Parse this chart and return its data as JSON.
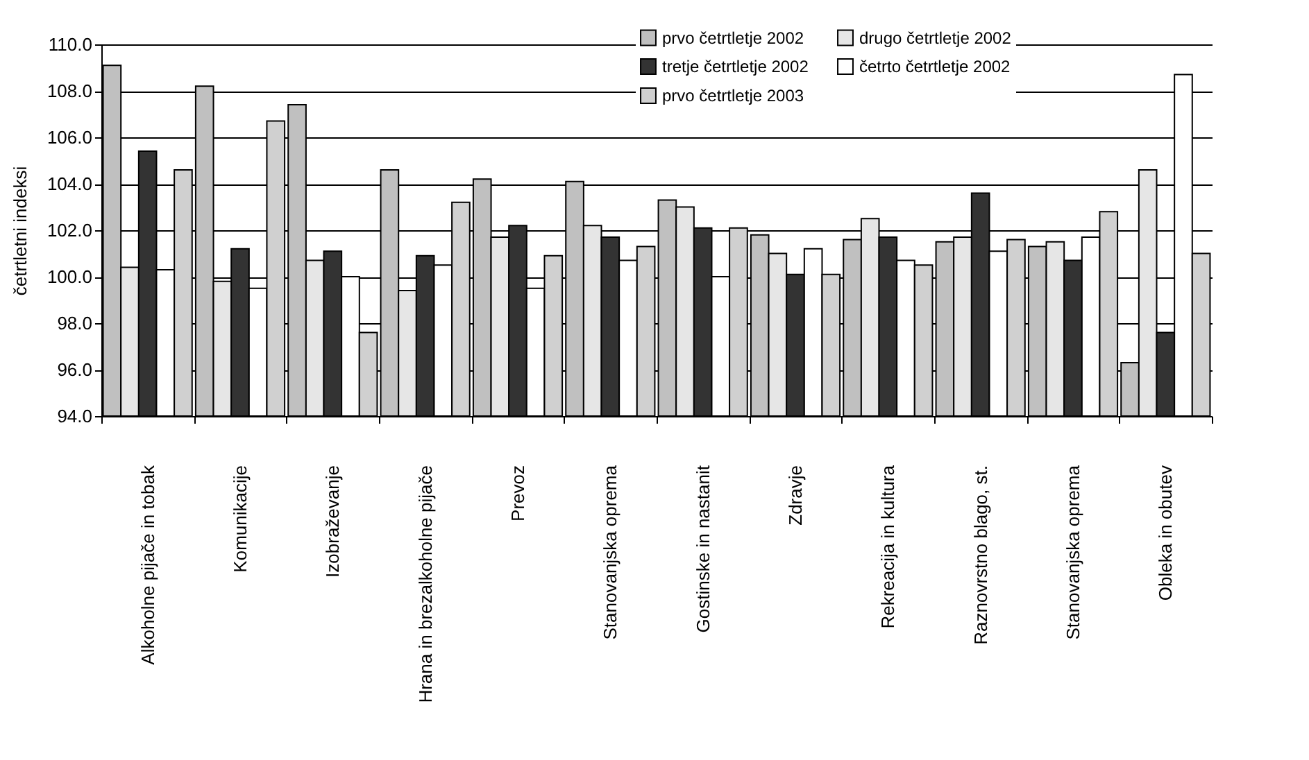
{
  "chart_data": {
    "type": "bar",
    "ylabel": "četrtletni indeksi",
    "categories": [
      "Alkoholne pijače in tobak",
      "Komunikacije",
      "Izobraževanje",
      "Hrana in brezalkoholne pijače",
      "Prevoz",
      "Stanovanjska oprema",
      "Gostinske in nastanit",
      "Zdravje",
      "Rekreacija in kultura",
      "Raznovrstno blago, st.",
      "Stanovanjska oprema",
      "Obleka in obutev"
    ],
    "series": [
      {
        "name": "prvo četrtletje 2002",
        "color": "#c0c0c0",
        "values": [
          109.1,
          108.2,
          107.4,
          104.6,
          104.2,
          104.1,
          103.3,
          101.8,
          101.6,
          101.5,
          101.3,
          96.3
        ]
      },
      {
        "name": "drugo četrtletje 2002",
        "color": "#e6e6e6",
        "values": [
          100.4,
          99.8,
          100.7,
          99.4,
          101.7,
          102.2,
          103.0,
          101.0,
          102.5,
          101.7,
          101.5,
          104.6
        ]
      },
      {
        "name": "tretje četrtletje 2002",
        "color": "#333333",
        "values": [
          105.4,
          101.2,
          101.1,
          100.9,
          102.2,
          101.7,
          102.1,
          100.1,
          101.7,
          103.6,
          100.7,
          97.6
        ]
      },
      {
        "name": "četrto četrtletje 2002",
        "color": "#ffffff",
        "values": [
          100.3,
          99.5,
          100.0,
          100.5,
          99.5,
          100.7,
          100.0,
          101.2,
          100.7,
          101.1,
          101.7,
          108.7
        ]
      },
      {
        "name": "prvo četrtletje 2003",
        "color": "#d0d0d0",
        "values": [
          104.6,
          106.7,
          97.6,
          103.2,
          100.9,
          101.3,
          102.1,
          100.1,
          100.5,
          101.6,
          102.8,
          101.0
        ]
      }
    ],
    "ylim": [
      94,
      110
    ],
    "yticks": [
      {
        "value": 94,
        "label": "94.0"
      },
      {
        "value": 96,
        "label": "96.0"
      },
      {
        "value": 98,
        "label": "98.0"
      },
      {
        "value": 100,
        "label": "100.0"
      },
      {
        "value": 102,
        "label": "102.0"
      },
      {
        "value": 104,
        "label": "104.0"
      },
      {
        "value": 106,
        "label": "106.0"
      },
      {
        "value": 108,
        "label": "108.0"
      },
      {
        "value": 110,
        "label": "110.0"
      }
    ],
    "grid": "y",
    "legend": "top right"
  }
}
